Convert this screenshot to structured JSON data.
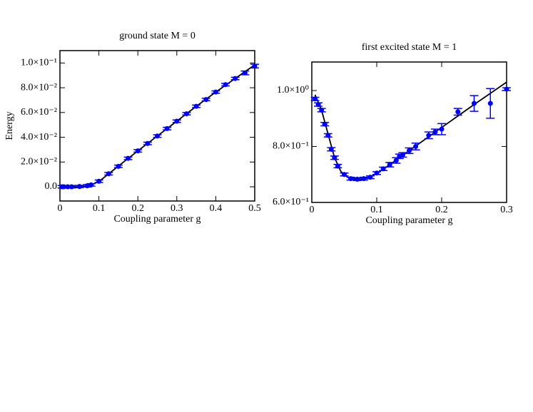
{
  "chart_data": [
    {
      "type": "scatter",
      "title": "ground state M = 0",
      "xlabel": "Coupling parameter g",
      "ylabel": "Energy",
      "xlim": [
        0,
        0.5
      ],
      "ylim": [
        -0.0115,
        0.11
      ],
      "xticks": [
        0,
        0.1,
        0.2,
        0.3,
        0.4,
        0.5
      ],
      "yticks": [
        {
          "value": 0,
          "label": "0.0"
        },
        {
          "value": 0.02,
          "label": "2.0×10⁻²"
        },
        {
          "value": 0.04,
          "label": "4.0×10⁻²"
        },
        {
          "value": 0.06,
          "label": "6.0×10⁻²"
        },
        {
          "value": 0.08,
          "label": "8.0×10⁻²"
        },
        {
          "value": 0.1,
          "label": "1.0×10⁻¹"
        }
      ],
      "points": {
        "color": "#0000ff",
        "x": [
          0.005,
          0.01,
          0.02,
          0.03,
          0.05,
          0.07,
          0.08,
          0.1,
          0.125,
          0.15,
          0.175,
          0.2,
          0.225,
          0.25,
          0.275,
          0.3,
          0.325,
          0.35,
          0.375,
          0.4,
          0.425,
          0.45,
          0.475,
          0.5
        ],
        "values": [
          0,
          0,
          0,
          0,
          0.0002,
          0.0008,
          0.0015,
          0.0045,
          0.0105,
          0.0165,
          0.023,
          0.029,
          0.035,
          0.041,
          0.047,
          0.053,
          0.059,
          0.065,
          0.0705,
          0.0765,
          0.0825,
          0.0875,
          0.092,
          0.0975
        ],
        "errors": [
          0.001,
          0.001,
          0.001,
          0.001,
          0.001,
          0.001,
          0.001,
          0.001,
          0.001,
          0.001,
          0.001,
          0.001,
          0.001,
          0.001,
          0.001,
          0.001,
          0.001,
          0.001,
          0.001,
          0.001,
          0.001,
          0.001,
          0.0015,
          0.0015
        ]
      },
      "fit": {
        "color": "#000000",
        "x": [
          0,
          0.04,
          0.06,
          0.08,
          0.1,
          0.12,
          0.14,
          0.16,
          0.2,
          0.25,
          0.3,
          0.35,
          0.4,
          0.45,
          0.5
        ],
        "values": [
          0,
          0,
          0.0004,
          0.0015,
          0.0042,
          0.0092,
          0.0142,
          0.0192,
          0.029,
          0.041,
          0.053,
          0.065,
          0.0765,
          0.0875,
          0.0985
        ]
      }
    },
    {
      "type": "scatter",
      "title": "first excited state M = 1",
      "xlabel": "Coupling parameter g",
      "xlim": [
        0,
        0.3
      ],
      "ylim": [
        0.6,
        1.102
      ],
      "xticks": [
        0,
        0.1,
        0.2,
        0.3
      ],
      "yticks": [
        {
          "value": 0.6,
          "label": "6.0×10⁻¹"
        },
        {
          "value": 0.8,
          "label": "8.0×10⁻¹"
        },
        {
          "value": 1.0,
          "label": "1.0×10⁰"
        }
      ],
      "points": {
        "color": "#0000ff",
        "x": [
          0.005,
          0.01,
          0.015,
          0.02,
          0.025,
          0.03,
          0.035,
          0.04,
          0.05,
          0.06,
          0.07,
          0.08,
          0.09,
          0.1,
          0.11,
          0.12,
          0.13,
          0.135,
          0.14,
          0.15,
          0.16,
          0.18,
          0.19,
          0.2,
          0.225,
          0.25,
          0.275,
          0.3
        ],
        "values": [
          0.97,
          0.95,
          0.93,
          0.88,
          0.84,
          0.79,
          0.76,
          0.73,
          0.7,
          0.685,
          0.683,
          0.685,
          0.69,
          0.705,
          0.72,
          0.735,
          0.75,
          0.765,
          0.77,
          0.785,
          0.8,
          0.84,
          0.852,
          0.862,
          0.924,
          0.954,
          0.954,
          1.005
        ],
        "errors": [
          0.006,
          0.006,
          0.006,
          0.006,
          0.006,
          0.006,
          0.006,
          0.006,
          0.005,
          0.005,
          0.005,
          0.005,
          0.005,
          0.005,
          0.006,
          0.008,
          0.01,
          0.008,
          0.008,
          0.01,
          0.012,
          0.012,
          0.01,
          0.02,
          0.012,
          0.028,
          0.053,
          0.005
        ]
      },
      "fit": {
        "color": "#000000",
        "x": [
          0.005,
          0.015,
          0.025,
          0.035,
          0.045,
          0.055,
          0.065,
          0.075,
          0.085,
          0.1,
          0.12,
          0.15,
          0.2,
          0.25,
          0.3
        ],
        "values": [
          0.985,
          0.93,
          0.845,
          0.76,
          0.71,
          0.69,
          0.684,
          0.683,
          0.687,
          0.703,
          0.735,
          0.785,
          0.868,
          0.95,
          1.03
        ]
      }
    }
  ]
}
